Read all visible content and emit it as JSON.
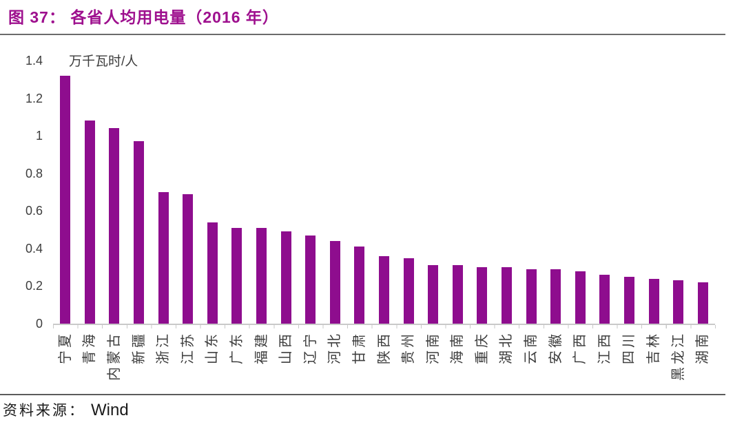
{
  "header": {
    "title": "图 37：  各省人均用电量（2016 年）"
  },
  "chart": {
    "unit_label": "万千瓦时/人"
  },
  "chart_data": {
    "type": "bar",
    "title": "各省人均用电量（2016 年）",
    "xlabel": "",
    "ylabel": "万千瓦时/人",
    "categories": [
      "宁夏",
      "青海",
      "内蒙古",
      "新疆",
      "浙江",
      "江苏",
      "山东",
      "广东",
      "福建",
      "山西",
      "辽宁",
      "河北",
      "甘肃",
      "陕西",
      "贵州",
      "河南",
      "海南",
      "重庆",
      "湖北",
      "云南",
      "安徽",
      "广西",
      "江西",
      "四川",
      "吉林",
      "黑龙江",
      "湖南"
    ],
    "values": [
      1.32,
      1.08,
      1.04,
      0.97,
      0.7,
      0.69,
      0.54,
      0.51,
      0.51,
      0.49,
      0.47,
      0.44,
      0.41,
      0.36,
      0.35,
      0.31,
      0.31,
      0.3,
      0.3,
      0.29,
      0.29,
      0.28,
      0.26,
      0.25,
      0.24,
      0.23,
      0.22
    ],
    "ylim": [
      0,
      1.4
    ],
    "yticks": [
      0,
      0.2,
      0.4,
      0.6,
      0.8,
      1,
      1.2,
      1.4
    ],
    "ytick_labels": [
      "0",
      "0.2",
      "0.4",
      "0.6",
      "0.8",
      "1",
      "1.2",
      "1.4"
    ],
    "grid": false,
    "legend": null,
    "bar_color": "#8e0d8e",
    "title_color": "#9e108e",
    "axis_color": "#c9c9c9",
    "text_color": "#3d3d3d"
  },
  "footer": {
    "source_label": "资料来源：",
    "source_value": "Wind"
  }
}
